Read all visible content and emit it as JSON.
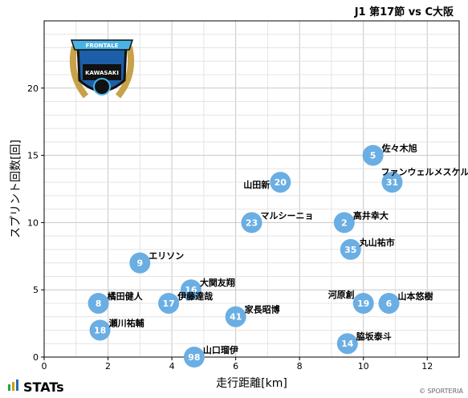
{
  "chart_data": {
    "type": "scatter",
    "title": "J1 第17節 vs C大阪",
    "xlabel": "走行距離[km]",
    "ylabel": "スプリント回数[回]",
    "xlim": [
      0,
      13
    ],
    "ylim": [
      0,
      25
    ],
    "xticks": [
      "0",
      "2",
      "4",
      "6",
      "8",
      "10",
      "12"
    ],
    "yticks": [
      "0",
      "5",
      "10",
      "15",
      "20"
    ],
    "grid": true,
    "marker_color": "#6aaee3",
    "points": [
      {
        "number": "5",
        "name": "佐々木旭",
        "x": 10.3,
        "y": 15
      },
      {
        "number": "20",
        "name": "山田新",
        "x": 7.4,
        "y": 13
      },
      {
        "number": "31",
        "name": "ファンウェルメスケルケン際",
        "x": 10.9,
        "y": 13
      },
      {
        "number": "23",
        "name": "マルシーニョ",
        "x": 6.5,
        "y": 10
      },
      {
        "number": "2",
        "name": "高井幸大",
        "x": 9.4,
        "y": 10
      },
      {
        "number": "35",
        "name": "丸山祐市",
        "x": 9.6,
        "y": 8
      },
      {
        "number": "9",
        "name": "エリソン",
        "x": 3.0,
        "y": 7
      },
      {
        "number": "16",
        "name": "大関友翔",
        "x": 4.6,
        "y": 5
      },
      {
        "number": "8",
        "name": "橘田健人",
        "x": 1.7,
        "y": 4
      },
      {
        "number": "17",
        "name": "伊藤達哉",
        "x": 3.9,
        "y": 4
      },
      {
        "number": "19",
        "name": "河原創",
        "x": 10.0,
        "y": 4
      },
      {
        "number": "6",
        "name": "山本悠樹",
        "x": 10.8,
        "y": 4
      },
      {
        "number": "41",
        "name": "家長昭博",
        "x": 6.0,
        "y": 3
      },
      {
        "number": "18",
        "name": "瀬川祐輔",
        "x": 1.75,
        "y": 2
      },
      {
        "number": "14",
        "name": "脇坂泰斗",
        "x": 9.5,
        "y": 1
      },
      {
        "number": "98",
        "name": "山口瑠伊",
        "x": 4.7,
        "y": 0
      }
    ]
  },
  "emblem": {
    "banner": "FRONTALE",
    "name": "KAWASAKI",
    "colors": {
      "blue": "#1c5fa8",
      "sky": "#4ab3e6",
      "gold": "#c8a24a",
      "dark": "#111111"
    }
  },
  "footer": {
    "brand": "STATs",
    "copyright": "© SPORTERIA",
    "brand_colors": [
      "#2aa14a",
      "#c8a000",
      "#2a6ab3"
    ]
  }
}
